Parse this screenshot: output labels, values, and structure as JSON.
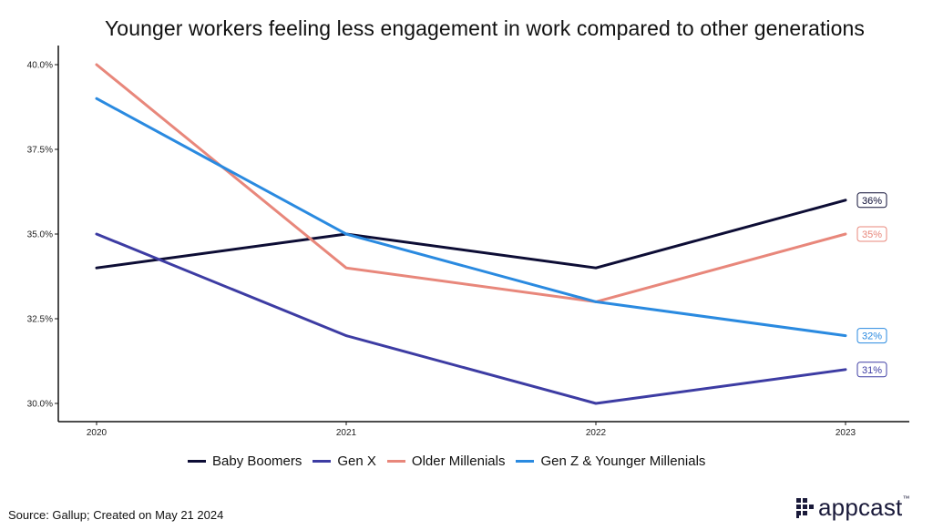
{
  "title": "Younger workers feeling less engagement in work compared to other generations",
  "source": "Source: Gallup; Created on May 21 2024",
  "brand": {
    "name": "appcast",
    "mark": "™"
  },
  "chart_data": {
    "type": "line",
    "title": "Younger workers feeling less engagement in work compared to other generations",
    "x": [
      "2020",
      "2021",
      "2022",
      "2023"
    ],
    "ylim": [
      30.0,
      40.0
    ],
    "yticks": [
      30.0,
      32.5,
      35.0,
      37.5,
      40.0
    ],
    "ytick_labels": [
      "30.0%",
      "32.5%",
      "35.0%",
      "37.5%",
      "40.0%"
    ],
    "xlabel": "",
    "ylabel": "",
    "grid": false,
    "legend_position": "bottom",
    "series": [
      {
        "name": "Baby Boomers",
        "color": "#0d0d35",
        "values": [
          34,
          35,
          34,
          36
        ],
        "end_label": "36%"
      },
      {
        "name": "Gen X",
        "color": "#3d3ca3",
        "values": [
          35,
          32,
          30,
          31
        ],
        "end_label": "31%"
      },
      {
        "name": "Older Millenials",
        "color": "#e8877b",
        "values": [
          40,
          34,
          33,
          35
        ],
        "end_label": "35%"
      },
      {
        "name": "Gen Z & Younger Millenials",
        "color": "#2a8ae0",
        "values": [
          39,
          35,
          33,
          32
        ],
        "end_label": "32%"
      }
    ]
  }
}
